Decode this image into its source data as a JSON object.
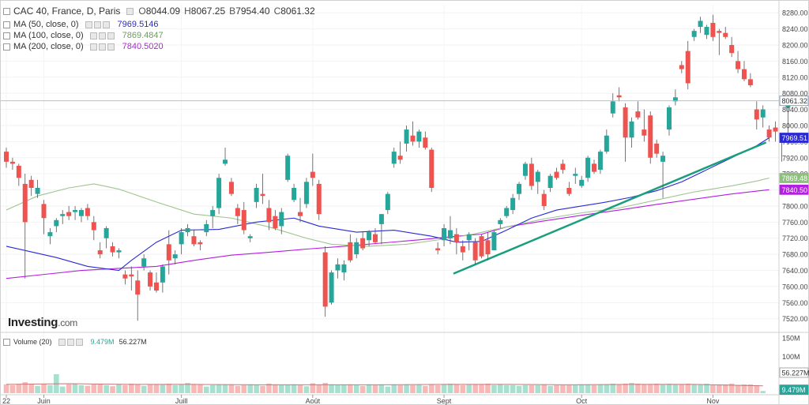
{
  "header": {
    "symbol": "CAC 40, France, D, Paris",
    "o_label": "O",
    "o_value": "8044.09",
    "h_label": "H",
    "h_value": "8067.25",
    "l_label": "B",
    "l_value": "7954.40",
    "c_label": "C",
    "c_value": "8061.32"
  },
  "indicators": [
    {
      "label": "MA (50, close, 0)",
      "value": "7969.5146",
      "color": "#2929d6"
    },
    {
      "label": "MA (100, close, 0)",
      "value": "7869.4847",
      "color": "#6b9e5a"
    },
    {
      "label": "MA (200, close, 0)",
      "value": "7840.5020",
      "color": "#b41ee0"
    }
  ],
  "volume_legend": {
    "label": "Volume (20)",
    "value1": "9.479M",
    "value2": "56.227M"
  },
  "logo": {
    "text": "Investing",
    "suffix": ".com"
  },
  "colors": {
    "up": "#26a69a",
    "down": "#ef5350",
    "vol_up": "#a8e0cf",
    "vol_down": "#f7b8b6",
    "trend": "#1a9e7e"
  },
  "chart_data": {
    "type": "candlestick",
    "y_axis_ticks": [
      "8280.00",
      "8240.00",
      "8200.00",
      "8160.00",
      "8120.00",
      "8080.00",
      "8040.00",
      "8000.00",
      "7960.00",
      "7920.00",
      "7880.00",
      "7840.00",
      "7800.00",
      "7760.00",
      "7720.00",
      "7680.00",
      "7640.00",
      "7600.00",
      "7560.00",
      "7520.00"
    ],
    "ylim": [
      7492,
      8300
    ],
    "volume_ticks": [
      "150M",
      "100M",
      "50M"
    ],
    "volume_ylim": [
      0,
      160
    ],
    "x_axis_labels": [
      {
        "label": "22",
        "index": 0
      },
      {
        "label": "Juin",
        "index": 6
      },
      {
        "label": "Juill",
        "index": 28
      },
      {
        "label": "Août",
        "index": 49
      },
      {
        "label": "Sept",
        "index": 70
      },
      {
        "label": "Oct",
        "index": 92
      },
      {
        "label": "Nov",
        "index": 113
      }
    ],
    "price_labels": [
      {
        "text": "8061.32",
        "value": 8061.32,
        "style": "current"
      },
      {
        "text": "7969.51",
        "value": 7969.51,
        "style": "ma50"
      },
      {
        "text": "7869.48",
        "value": 7869.48,
        "style": "ma100"
      },
      {
        "text": "7840.50",
        "value": 7840.5,
        "style": "ma200"
      }
    ],
    "volume_labels": [
      {
        "text": "56.227M",
        "value": 56.227,
        "style": "plain"
      },
      {
        "text": "9.479M",
        "value": 9.479,
        "style": "up"
      }
    ],
    "current_price": 8061.32,
    "trendline": [
      {
        "index": 71.5,
        "value": 7632
      },
      {
        "index": 121.5,
        "value": 7958
      }
    ],
    "candles": [
      [
        7935,
        7945,
        7895,
        7910
      ],
      [
        7910,
        7920,
        7890,
        7905
      ],
      [
        7900,
        7905,
        7850,
        7870
      ],
      [
        7855,
        7880,
        7620,
        7760
      ],
      [
        7865,
        7875,
        7825,
        7845
      ],
      [
        7830,
        7865,
        7820,
        7845
      ],
      [
        7805,
        7815,
        7730,
        7770
      ],
      [
        7725,
        7745,
        7705,
        7735
      ],
      [
        7750,
        7770,
        7735,
        7765
      ],
      [
        7775,
        7790,
        7755,
        7780
      ],
      [
        7785,
        7800,
        7765,
        7775
      ],
      [
        7785,
        7800,
        7765,
        7790
      ],
      [
        7775,
        7795,
        7760,
        7790
      ],
      [
        7795,
        7805,
        7765,
        7775
      ],
      [
        7760,
        7775,
        7715,
        7740
      ],
      [
        7690,
        7710,
        7670,
        7680
      ],
      [
        7720,
        7750,
        7695,
        7745
      ],
      [
        7700,
        7710,
        7675,
        7685
      ],
      [
        7685,
        7695,
        7670,
        7690
      ],
      [
        7630,
        7640,
        7605,
        7620
      ],
      [
        7630,
        7650,
        7590,
        7625
      ],
      [
        7615,
        7640,
        7515,
        7580
      ],
      [
        7650,
        7680,
        7640,
        7670
      ],
      [
        7635,
        7640,
        7590,
        7600
      ],
      [
        7610,
        7635,
        7585,
        7590
      ],
      [
        7610,
        7655,
        7585,
        7650
      ],
      [
        7705,
        7740,
        7630,
        7665
      ],
      [
        7670,
        7690,
        7655,
        7680
      ],
      [
        7705,
        7745,
        7680,
        7735
      ],
      [
        7735,
        7755,
        7725,
        7745
      ],
      [
        7725,
        7740,
        7700,
        7705
      ],
      [
        7710,
        7715,
        7690,
        7705
      ],
      [
        7735,
        7765,
        7725,
        7755
      ],
      [
        7775,
        7800,
        7745,
        7790
      ],
      [
        7795,
        7880,
        7780,
        7870
      ],
      [
        7905,
        7945,
        7900,
        7915
      ],
      [
        7860,
        7870,
        7825,
        7830
      ],
      [
        7795,
        7805,
        7755,
        7775
      ],
      [
        7790,
        7810,
        7730,
        7740
      ],
      [
        7720,
        7730,
        7710,
        7725
      ],
      [
        7810,
        7855,
        7795,
        7845
      ],
      [
        7830,
        7880,
        7805,
        7825
      ],
      [
        7795,
        7815,
        7740,
        7760
      ],
      [
        7775,
        7790,
        7740,
        7745
      ],
      [
        7750,
        7795,
        7730,
        7785
      ],
      [
        7865,
        7930,
        7860,
        7925
      ],
      [
        7815,
        7855,
        7810,
        7845
      ],
      [
        7785,
        7820,
        7760,
        7775
      ],
      [
        7805,
        7870,
        7795,
        7860
      ],
      [
        7885,
        7930,
        7850,
        7870
      ],
      [
        7855,
        7865,
        7765,
        7780
      ],
      [
        7685,
        7700,
        7525,
        7550
      ],
      [
        7560,
        7640,
        7555,
        7635
      ],
      [
        7640,
        7670,
        7620,
        7655
      ],
      [
        7635,
        7665,
        7615,
        7655
      ],
      [
        7710,
        7730,
        7660,
        7665
      ],
      [
        7680,
        7720,
        7670,
        7710
      ],
      [
        7720,
        7735,
        7690,
        7695
      ],
      [
        7715,
        7740,
        7700,
        7735
      ],
      [
        7730,
        7745,
        7705,
        7710
      ],
      [
        7755,
        7780,
        7705,
        7780
      ],
      [
        7790,
        7835,
        7780,
        7830
      ],
      [
        7905,
        7945,
        7895,
        7935
      ],
      [
        7925,
        7960,
        7905,
        7915
      ],
      [
        7955,
        8000,
        7935,
        7990
      ],
      [
        7975,
        8010,
        7950,
        7960
      ],
      [
        7960,
        7990,
        7945,
        7985
      ],
      [
        7970,
        7985,
        7940,
        7945
      ],
      [
        7940,
        7945,
        7835,
        7845
      ],
      [
        7695,
        7710,
        7680,
        7690
      ],
      [
        7715,
        7755,
        7700,
        7745
      ],
      [
        7720,
        7775,
        7705,
        7740
      ],
      [
        7730,
        7745,
        7680,
        7710
      ],
      [
        7700,
        7715,
        7665,
        7685
      ],
      [
        7715,
        7735,
        7690,
        7730
      ],
      [
        7710,
        7720,
        7655,
        7665
      ],
      [
        7725,
        7730,
        7670,
        7675
      ],
      [
        7715,
        7735,
        7665,
        7680
      ],
      [
        7690,
        7740,
        7690,
        7735
      ],
      [
        7755,
        7770,
        7745,
        7765
      ],
      [
        7775,
        7800,
        7770,
        7795
      ],
      [
        7790,
        7830,
        7780,
        7820
      ],
      [
        7830,
        7860,
        7815,
        7855
      ],
      [
        7875,
        7910,
        7865,
        7905
      ],
      [
        7905,
        7920,
        7840,
        7850
      ],
      [
        7860,
        7890,
        7830,
        7885
      ],
      [
        7830,
        7840,
        7790,
        7800
      ],
      [
        7845,
        7880,
        7835,
        7875
      ],
      [
        7885,
        7895,
        7865,
        7870
      ],
      [
        7905,
        7915,
        7880,
        7890
      ],
      [
        7845,
        7860,
        7825,
        7830
      ],
      [
        7875,
        7895,
        7855,
        7880
      ],
      [
        7850,
        7875,
        7845,
        7865
      ],
      [
        7870,
        7925,
        7860,
        7920
      ],
      [
        7905,
        7915,
        7880,
        7885
      ],
      [
        7890,
        7940,
        7880,
        7935
      ],
      [
        7935,
        7990,
        7930,
        7975
      ],
      [
        8030,
        8080,
        8020,
        8060
      ],
      [
        8075,
        8095,
        8060,
        8070
      ],
      [
        8045,
        8055,
        7910,
        7970
      ],
      [
        7970,
        8020,
        7945,
        8010
      ],
      [
        8035,
        8060,
        8015,
        8020
      ],
      [
        7990,
        8040,
        7960,
        7975
      ],
      [
        8025,
        8035,
        7905,
        7920
      ],
      [
        7955,
        7965,
        7920,
        7930
      ],
      [
        7910,
        7935,
        7820,
        7925
      ],
      [
        7990,
        8050,
        7975,
        8045
      ],
      [
        8060,
        8090,
        8050,
        8070
      ],
      [
        8150,
        8160,
        8130,
        8140
      ],
      [
        8185,
        8210,
        8090,
        8105
      ],
      [
        8220,
        8240,
        8210,
        8235
      ],
      [
        8245,
        8270,
        8230,
        8260
      ],
      [
        8225,
        8250,
        8215,
        8245
      ],
      [
        8255,
        8275,
        8210,
        8220
      ],
      [
        8235,
        8240,
        8175,
        8230
      ],
      [
        8230,
        8245,
        8215,
        8220
      ],
      [
        8200,
        8220,
        8170,
        8180
      ],
      [
        8160,
        8185,
        8130,
        8140
      ],
      [
        8140,
        8160,
        8110,
        8115
      ],
      [
        8115,
        8130,
        8095,
        8100
      ],
      [
        8040,
        8060,
        7990,
        8015
      ],
      [
        8020,
        8050,
        7995,
        8040
      ],
      [
        7990,
        8000,
        7960,
        7970
      ],
      [
        7995,
        8010,
        7960,
        7985
      ],
      [
        7960,
        7975,
        7910,
        7960
      ],
      [
        8044.09,
        8067.25,
        7954.4,
        8061.32
      ]
    ],
    "volumes": [
      24,
      22,
      25,
      30,
      24,
      20,
      26,
      22,
      52,
      18,
      24,
      26,
      22,
      20,
      24,
      25,
      22,
      19,
      24,
      22,
      26,
      24,
      20,
      24,
      24,
      24,
      26,
      22,
      24,
      28,
      25,
      24,
      18,
      22,
      24,
      23,
      24,
      20,
      22,
      24,
      22,
      20,
      26,
      24,
      22,
      22,
      24,
      22,
      19,
      27,
      24,
      28,
      24,
      22,
      23,
      24,
      22,
      20,
      24,
      22,
      24,
      18,
      24,
      22,
      24,
      22,
      24,
      20,
      24,
      22,
      24,
      26,
      24,
      22,
      24,
      24,
      24,
      26,
      22,
      24,
      22,
      22,
      20,
      22,
      22,
      22,
      24,
      20,
      22,
      22,
      22,
      22,
      24,
      24,
      22,
      24,
      24,
      26,
      24,
      26,
      28,
      26,
      24,
      24,
      26,
      24,
      26,
      24,
      24,
      26,
      24,
      24,
      26,
      22,
      24,
      24,
      26,
      22,
      24,
      24,
      22,
      6
    ],
    "ma50": [
      [
        0,
        7700
      ],
      [
        8,
        7672
      ],
      [
        13,
        7650
      ],
      [
        18,
        7640
      ],
      [
        20,
        7665
      ],
      [
        24,
        7710
      ],
      [
        28,
        7740
      ],
      [
        34,
        7742
      ],
      [
        40,
        7760
      ],
      [
        46,
        7770
      ],
      [
        50,
        7750
      ],
      [
        56,
        7735
      ],
      [
        62,
        7740
      ],
      [
        68,
        7725
      ],
      [
        72,
        7710
      ],
      [
        76,
        7712
      ],
      [
        80,
        7740
      ],
      [
        84,
        7770
      ],
      [
        88,
        7790
      ],
      [
        92,
        7800
      ],
      [
        96,
        7810
      ],
      [
        100,
        7822
      ],
      [
        104,
        7838
      ],
      [
        108,
        7860
      ],
      [
        112,
        7890
      ],
      [
        116,
        7920
      ],
      [
        120,
        7950
      ],
      [
        122,
        7969.51
      ]
    ],
    "ma100": [
      [
        0,
        7790
      ],
      [
        5,
        7825
      ],
      [
        10,
        7845
      ],
      [
        14,
        7855
      ],
      [
        18,
        7842
      ],
      [
        24,
        7810
      ],
      [
        30,
        7780
      ],
      [
        36,
        7770
      ],
      [
        42,
        7748
      ],
      [
        48,
        7720
      ],
      [
        52,
        7705
      ],
      [
        58,
        7700
      ],
      [
        64,
        7705
      ],
      [
        70,
        7718
      ],
      [
        74,
        7728
      ],
      [
        80,
        7748
      ],
      [
        86,
        7768
      ],
      [
        92,
        7783
      ],
      [
        98,
        7795
      ],
      [
        104,
        7815
      ],
      [
        110,
        7835
      ],
      [
        116,
        7850
      ],
      [
        120,
        7862
      ],
      [
        122,
        7869.48
      ]
    ],
    "ma200": [
      [
        0,
        7620
      ],
      [
        6,
        7630
      ],
      [
        12,
        7640
      ],
      [
        18,
        7645
      ],
      [
        24,
        7650
      ],
      [
        30,
        7665
      ],
      [
        36,
        7678
      ],
      [
        42,
        7685
      ],
      [
        48,
        7693
      ],
      [
        54,
        7700
      ],
      [
        60,
        7708
      ],
      [
        66,
        7716
      ],
      [
        72,
        7725
      ],
      [
        76,
        7730
      ],
      [
        80,
        7748
      ],
      [
        86,
        7763
      ],
      [
        92,
        7777
      ],
      [
        98,
        7790
      ],
      [
        104,
        7804
      ],
      [
        110,
        7817
      ],
      [
        116,
        7830
      ],
      [
        120,
        7837
      ],
      [
        122,
        7840.5
      ]
    ],
    "volume_ma": [
      [
        0,
        24
      ],
      [
        10,
        26
      ],
      [
        20,
        24
      ],
      [
        30,
        24
      ],
      [
        40,
        23
      ],
      [
        50,
        23
      ],
      [
        60,
        23
      ],
      [
        70,
        24
      ],
      [
        80,
        24
      ],
      [
        90,
        23
      ],
      [
        100,
        24
      ],
      [
        110,
        24
      ],
      [
        121,
        20
      ]
    ]
  }
}
